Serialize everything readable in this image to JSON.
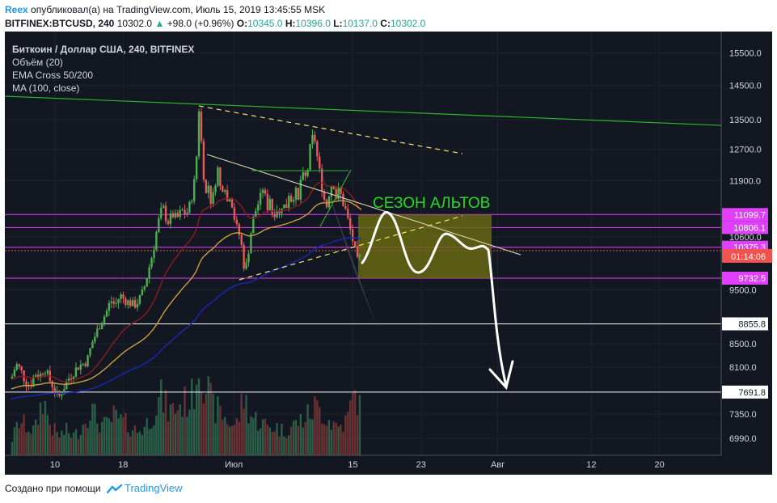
{
  "header": {
    "user": "Reex",
    "published_text": "опубликовал(а) на TradingView.com, Июль 15, 2019 13:45:55 MSK",
    "symbol": "BITFINEX:BTCUSD, 240",
    "price": "10302.0",
    "change": "+98.0 (+0.96%)",
    "o_label": "O:",
    "o_value": "10345.0",
    "h_label": "H:",
    "h_value": "10396.0",
    "l_label": "L:",
    "l_value": "10137.0",
    "c_label": "C:",
    "c_value": "10302.0"
  },
  "legend": {
    "title": "Биткоин / Доллар США, 240, BITFINEX",
    "indicators": [
      "Объём (20)",
      "EMA Cross 50/200",
      "MA (100, close)"
    ]
  },
  "annotation": {
    "text": "СЕЗОН АЛЬТОВ",
    "color": "#22dd22"
  },
  "footer": {
    "created_with": "Создано при помощи",
    "brand": "TradingView"
  },
  "colors": {
    "background": "#131722",
    "grid": "#1e2330",
    "axis_text": "#d1d4dc",
    "up_candle": "#4caf50",
    "down_candle": "#e35b5b",
    "ema50": "#8b1c1c",
    "ema200": "#1828b8",
    "ma100": "#c7a040",
    "magenta_level": "#e040fb",
    "white_level": "#ffffff",
    "trend_green": "#2bb52b",
    "trend_yellow": "#f5e56b",
    "box_fill": "#6b6b10",
    "price_tag": "#ef5350"
  },
  "chart_data": {
    "type": "candlestick",
    "x_axis": {
      "ticks": [
        {
          "label": "10",
          "date": "2019-06-10"
        },
        {
          "label": "18",
          "date": "2019-06-18"
        },
        {
          "label": "Июл",
          "date": "2019-07-01"
        },
        {
          "label": "15",
          "date": "2019-07-15"
        },
        {
          "label": "23",
          "date": "2019-07-23"
        },
        {
          "label": "Авг",
          "date": "2019-08-01"
        },
        {
          "label": "12",
          "date": "2019-08-12"
        },
        {
          "label": "20",
          "date": "2019-08-20"
        }
      ]
    },
    "y_axis": {
      "scale": "log",
      "ticks": [
        15500,
        14500,
        13500,
        12700,
        11900,
        10600,
        9500,
        8500,
        8100,
        7350,
        6990
      ],
      "tick_labels": [
        "15500.0",
        "14500.0",
        "13500.0",
        "12700.0",
        "11900.0",
        "10600.0",
        "9500.0",
        "8500.0",
        "8100.0",
        "7350.0",
        "6990.0"
      ],
      "range": [
        6750,
        16200
      ]
    },
    "levels": [
      {
        "label": "11099.7",
        "value": 11099.7,
        "style": "magenta"
      },
      {
        "label": "10806.1",
        "value": 10806.1,
        "style": "magenta"
      },
      {
        "label": "10375.3",
        "value": 10375.3,
        "style": "magenta"
      },
      {
        "label": "9732.5",
        "value": 9732.5,
        "style": "magenta"
      },
      {
        "label": "8855.8",
        "value": 8855.8,
        "style": "white"
      },
      {
        "label": "7691.8",
        "value": 7691.8,
        "style": "white"
      }
    ],
    "current_price": {
      "value": 10302.0,
      "countdown": "01:14:06"
    },
    "price_path": [
      [
        0,
        7900
      ],
      [
        6,
        8150
      ],
      [
        12,
        8050
      ],
      [
        18,
        7850
      ],
      [
        24,
        7800
      ],
      [
        30,
        8000
      ],
      [
        36,
        7950
      ],
      [
        42,
        8100
      ],
      [
        48,
        7900
      ],
      [
        54,
        7750
      ],
      [
        60,
        7600
      ],
      [
        66,
        7750
      ],
      [
        72,
        7900
      ],
      [
        78,
        8000
      ],
      [
        84,
        8100
      ],
      [
        90,
        8150
      ],
      [
        96,
        8200
      ],
      [
        102,
        8500
      ],
      [
        108,
        8700
      ],
      [
        114,
        8900
      ],
      [
        120,
        9050
      ],
      [
        126,
        9300
      ],
      [
        132,
        9200
      ],
      [
        138,
        9400
      ],
      [
        144,
        9300
      ],
      [
        150,
        9250
      ],
      [
        156,
        9200
      ],
      [
        162,
        9300
      ],
      [
        168,
        9500
      ],
      [
        174,
        9900
      ],
      [
        180,
        10300
      ],
      [
        186,
        10900
      ],
      [
        192,
        11300
      ],
      [
        198,
        10900
      ],
      [
        204,
        11100
      ],
      [
        210,
        11000
      ],
      [
        216,
        11200
      ],
      [
        222,
        11100
      ],
      [
        228,
        11400
      ],
      [
        234,
        12100
      ],
      [
        238,
        13800
      ],
      [
        242,
        12600
      ],
      [
        246,
        11500
      ],
      [
        250,
        11800
      ],
      [
        254,
        11300
      ],
      [
        258,
        11800
      ],
      [
        262,
        12200
      ],
      [
        266,
        11600
      ],
      [
        270,
        11900
      ],
      [
        274,
        11400
      ],
      [
        278,
        11600
      ],
      [
        282,
        11100
      ],
      [
        286,
        10800
      ],
      [
        290,
        10600
      ],
      [
        294,
        10200
      ],
      [
        296,
        9800
      ],
      [
        300,
        10200
      ],
      [
        304,
        10700
      ],
      [
        308,
        11100
      ],
      [
        312,
        11300
      ],
      [
        316,
        11500
      ],
      [
        320,
        11800
      ],
      [
        324,
        11200
      ],
      [
        328,
        11500
      ],
      [
        332,
        11000
      ],
      [
        336,
        11300
      ],
      [
        340,
        11100
      ],
      [
        344,
        11400
      ],
      [
        348,
        11200
      ],
      [
        352,
        11600
      ],
      [
        356,
        11400
      ],
      [
        360,
        11700
      ],
      [
        364,
        11400
      ],
      [
        368,
        12100
      ],
      [
        372,
        11900
      ],
      [
        376,
        12200
      ],
      [
        380,
        12900
      ],
      [
        384,
        13100
      ],
      [
        388,
        12500
      ],
      [
        392,
        12000
      ],
      [
        396,
        11500
      ],
      [
        400,
        11300
      ],
      [
        404,
        11700
      ],
      [
        408,
        11900
      ],
      [
        412,
        11500
      ],
      [
        416,
        11700
      ],
      [
        420,
        11400
      ],
      [
        424,
        11200
      ],
      [
        428,
        10900
      ],
      [
        432,
        10600
      ],
      [
        436,
        10300
      ],
      [
        440,
        10000
      ],
      [
        444,
        10302
      ]
    ],
    "volume": [
      [
        0,
        0.15
      ],
      [
        10,
        0.35
      ],
      [
        20,
        0.3
      ],
      [
        30,
        0.25
      ],
      [
        40,
        0.6
      ],
      [
        50,
        0.3
      ],
      [
        60,
        0.2
      ],
      [
        70,
        0.25
      ],
      [
        80,
        0.2
      ],
      [
        90,
        0.3
      ],
      [
        100,
        0.5
      ],
      [
        110,
        0.35
      ],
      [
        120,
        0.3
      ],
      [
        130,
        0.4
      ],
      [
        140,
        0.35
      ],
      [
        150,
        0.3
      ],
      [
        160,
        0.25
      ],
      [
        170,
        0.3
      ],
      [
        180,
        0.45
      ],
      [
        190,
        0.6
      ],
      [
        200,
        0.45
      ],
      [
        210,
        0.5
      ],
      [
        220,
        0.55
      ],
      [
        230,
        0.6
      ],
      [
        238,
        1.0
      ],
      [
        245,
        0.8
      ],
      [
        255,
        0.5
      ],
      [
        265,
        0.45
      ],
      [
        275,
        0.35
      ],
      [
        285,
        0.3
      ],
      [
        295,
        0.6
      ],
      [
        305,
        0.4
      ],
      [
        315,
        0.35
      ],
      [
        325,
        0.3
      ],
      [
        335,
        0.3
      ],
      [
        345,
        0.25
      ],
      [
        355,
        0.3
      ],
      [
        365,
        0.35
      ],
      [
        375,
        0.4
      ],
      [
        385,
        0.5
      ],
      [
        395,
        0.45
      ],
      [
        405,
        0.35
      ],
      [
        415,
        0.3
      ],
      [
        425,
        0.35
      ],
      [
        432,
        0.55
      ],
      [
        438,
        0.65
      ],
      [
        444,
        0.4
      ]
    ],
    "volume_max": 1.0
  }
}
